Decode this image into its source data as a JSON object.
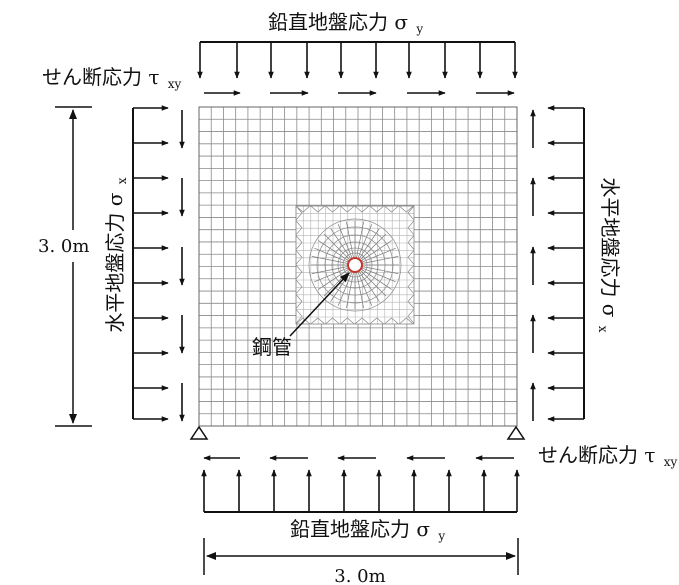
{
  "labels": {
    "top_load": "鉛直地盤応力 σ",
    "top_load_sub": "y",
    "bottom_load": "鉛直地盤応力 σ",
    "bottom_load_sub": "y",
    "shear_top": "せん断応力 τ",
    "shear_top_sub": "xy",
    "shear_bottom": "せん断応力 τ",
    "shear_bottom_sub": "xy",
    "left_load": "水平地盤応力 σ",
    "left_load_sub": "x",
    "right_load": "水平地盤応力 σ",
    "right_load_sub": "x",
    "height_dim": "3. 0m",
    "width_dim": "3. 0m",
    "pipe": "鋼管"
  },
  "colors": {
    "ink": "#111111",
    "mesh": "#8a8a8a",
    "pipe": "#c8342b"
  }
}
